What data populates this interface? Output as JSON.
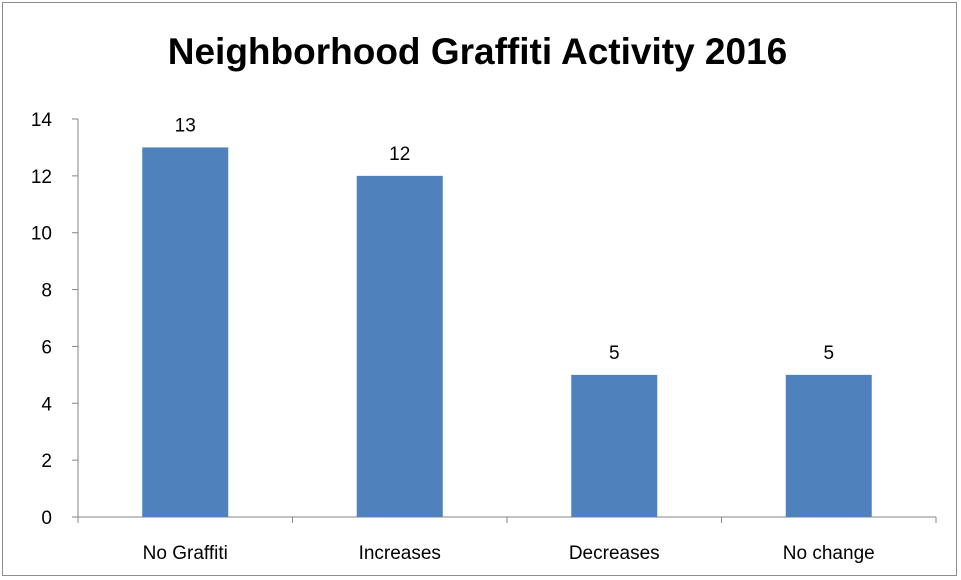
{
  "chart_data": {
    "type": "bar",
    "title": "Neighborhood Graffiti Activity 2016",
    "categories": [
      "No Graffiti",
      "Increases",
      "Decreases",
      "No change"
    ],
    "values": [
      13,
      12,
      5,
      5
    ],
    "data_labels": [
      "13",
      "12",
      "5",
      "5"
    ],
    "yticks": [
      "0",
      "2",
      "4",
      "6",
      "8",
      "10",
      "12",
      "14"
    ],
    "ylim": [
      0,
      14
    ],
    "xlabel": "",
    "ylabel": "",
    "grid": false,
    "legend": "none",
    "bar_color": "#4f81bd",
    "axis_color": "#868686"
  }
}
